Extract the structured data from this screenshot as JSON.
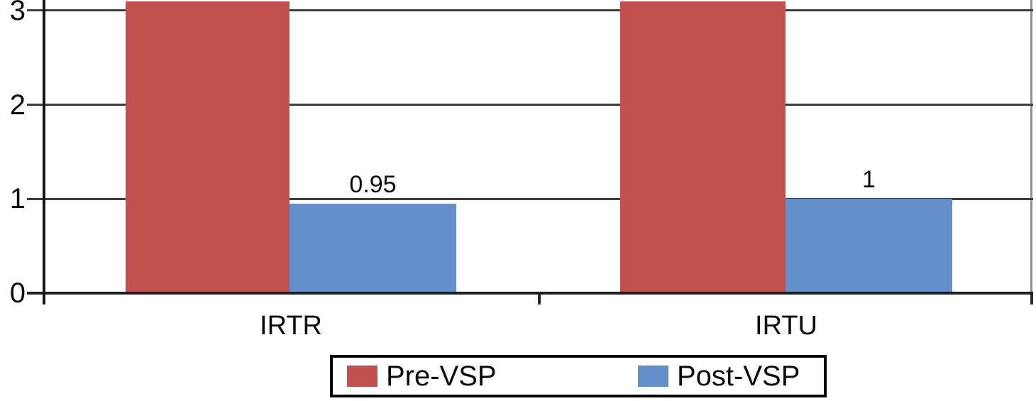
{
  "figure": {
    "background": "#ffffff",
    "text_color": "#0b0b0b"
  },
  "chart_data": {
    "type": "bar",
    "categories": [
      "IRTR",
      "IRTU"
    ],
    "series": [
      {
        "name": "Pre-VSP",
        "color": "#c0514e",
        "values": [
          3.1,
          3.1
        ],
        "value_labels": [
          "",
          ""
        ],
        "clipped_at_top": true
      },
      {
        "name": "Post-VSP",
        "color": "#6390cb",
        "values": [
          0.95,
          1
        ],
        "value_labels": [
          "0.95",
          "1"
        ],
        "clipped_at_top": false
      }
    ],
    "title": "",
    "xlabel": "",
    "ylabel": "",
    "yticks": [
      0,
      1,
      2,
      3
    ],
    "ytick_labels": [
      "0",
      "1",
      "2",
      "3"
    ],
    "ylim": [
      0,
      3.1
    ],
    "grid": true,
    "gridline_color": "#3d3d3d",
    "axis_color": "#1f1f1f",
    "legend": {
      "position": "bottom",
      "boxed": true,
      "entries": [
        "Pre-VSP",
        "Post-VSP"
      ]
    }
  }
}
